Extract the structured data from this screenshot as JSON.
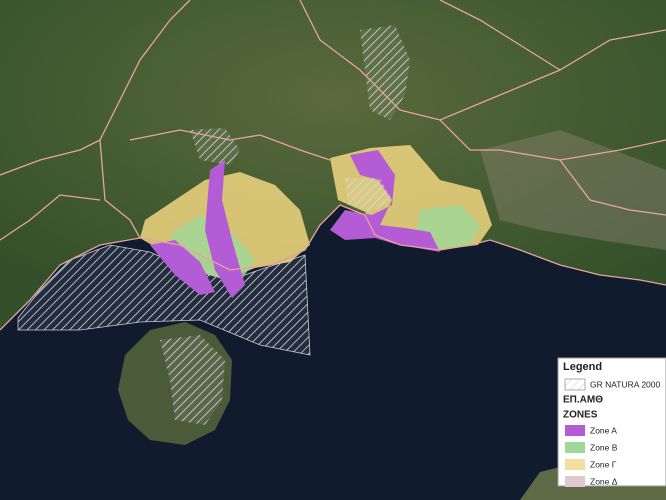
{
  "legend": {
    "title": "Legend",
    "natura": "GR NATURA 2000",
    "group": "ΕΠ.ΑΜΘ",
    "zones_heading": "ZONES",
    "zones": [
      {
        "label": "Zone A",
        "color": "#b35cd6"
      },
      {
        "label": "Zone B",
        "color": "#9fd89a"
      },
      {
        "label": "Zone Γ",
        "color": "#f3dfa0"
      },
      {
        "label": "Zone Δ",
        "color": "#e0c8cf"
      }
    ]
  }
}
